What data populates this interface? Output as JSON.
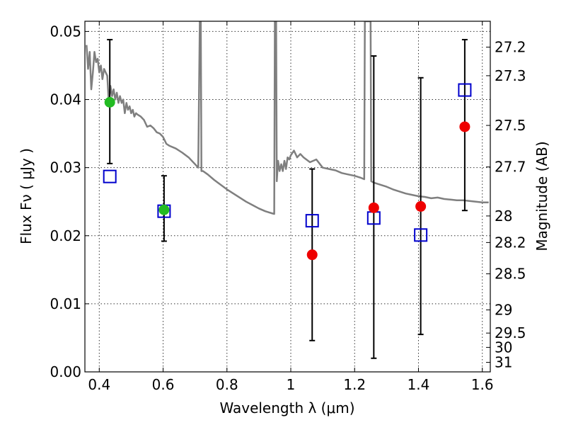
{
  "chart_data": {
    "type": "scatter",
    "xlabel": "Wavelength  λ (μm)",
    "ylabel": "Flux  Fν  ( μJy )",
    "ylabel_right": "Magnitude (AB)",
    "xlim": [
      0.355,
      1.625
    ],
    "ylim": [
      0.0,
      0.0515
    ],
    "grid": true,
    "x_ticks": [
      0.4,
      0.6,
      0.8,
      1.0,
      1.2,
      1.4,
      1.6
    ],
    "x_tick_labels": [
      "0.4",
      "0.6",
      "0.8",
      "1",
      "1.2",
      "1.4",
      "1.6"
    ],
    "y_ticks": [
      0.0,
      0.01,
      0.02,
      0.03,
      0.04,
      0.05
    ],
    "y_tick_labels": [
      "0.00",
      "0.01",
      "0.02",
      "0.03",
      "0.04",
      "0.05"
    ],
    "right_ticks": [
      {
        "label": "27.2",
        "flux": 0.0477
      },
      {
        "label": "27.3",
        "flux": 0.0435
      },
      {
        "label": "27.5",
        "flux": 0.0362
      },
      {
        "label": "27.7",
        "flux": 0.0301
      },
      {
        "label": "28",
        "flux": 0.0229
      },
      {
        "label": "28.2",
        "flux": 0.019
      },
      {
        "label": "28.5",
        "flux": 0.0144
      },
      {
        "label": "29",
        "flux": 0.0091
      },
      {
        "label": "29.5",
        "flux": 0.0057
      },
      {
        "label": "30",
        "flux": 0.0036
      },
      {
        "label": "31",
        "flux": 0.0014
      }
    ],
    "series": [
      {
        "kind": "spectrum",
        "color": "#7f7f7f",
        "x": [
          0.36,
          0.365,
          0.37,
          0.375,
          0.38,
          0.385,
          0.39,
          0.395,
          0.4,
          0.405,
          0.41,
          0.415,
          0.42,
          0.425,
          0.43,
          0.435,
          0.44,
          0.445,
          0.45,
          0.455,
          0.46,
          0.465,
          0.47,
          0.475,
          0.48,
          0.485,
          0.49,
          0.495,
          0.5,
          0.505,
          0.51,
          0.515,
          0.52,
          0.53,
          0.54,
          0.55,
          0.56,
          0.57,
          0.58,
          0.59,
          0.6,
          0.61,
          0.62,
          0.64,
          0.66,
          0.68,
          0.7,
          0.71,
          0.715,
          0.718,
          0.72,
          0.725,
          0.74,
          0.76,
          0.78,
          0.8,
          0.82,
          0.84,
          0.86,
          0.88,
          0.9,
          0.92,
          0.94,
          0.948,
          0.95,
          0.952,
          0.954,
          0.956,
          0.96,
          0.965,
          0.97,
          0.975,
          0.98,
          0.985,
          0.99,
          0.995,
          1.0,
          1.01,
          1.02,
          1.03,
          1.04,
          1.06,
          1.08,
          1.1,
          1.12,
          1.14,
          1.16,
          1.18,
          1.2,
          1.22,
          1.23,
          1.232,
          1.25,
          1.252,
          1.26,
          1.28,
          1.3,
          1.32,
          1.34,
          1.36,
          1.38,
          1.4,
          1.42,
          1.44,
          1.46,
          1.48,
          1.5,
          1.52,
          1.54,
          1.56,
          1.58,
          1.6,
          1.62
        ],
        "y": [
          0.048,
          0.0445,
          0.047,
          0.0415,
          0.044,
          0.047,
          0.0455,
          0.046,
          0.044,
          0.045,
          0.043,
          0.0445,
          0.044,
          0.0435,
          0.0395,
          0.042,
          0.0405,
          0.0415,
          0.04,
          0.041,
          0.0395,
          0.0405,
          0.0395,
          0.04,
          0.038,
          0.0395,
          0.0385,
          0.039,
          0.038,
          0.0385,
          0.0375,
          0.038,
          0.0378,
          0.0375,
          0.037,
          0.036,
          0.0362,
          0.0358,
          0.0352,
          0.035,
          0.0345,
          0.0335,
          0.0332,
          0.0328,
          0.0322,
          0.0315,
          0.0305,
          0.03,
          0.0515,
          0.0515,
          0.0295,
          0.0295,
          0.029,
          0.0282,
          0.0275,
          0.0268,
          0.0262,
          0.0256,
          0.025,
          0.0245,
          0.024,
          0.0236,
          0.0233,
          0.0232,
          0.0515,
          0.0515,
          0.0515,
          0.028,
          0.031,
          0.0295,
          0.0305,
          0.0295,
          0.031,
          0.0298,
          0.0315,
          0.0312,
          0.0318,
          0.0325,
          0.0315,
          0.032,
          0.0315,
          0.0308,
          0.0312,
          0.03,
          0.0298,
          0.0296,
          0.0292,
          0.029,
          0.0288,
          0.0285,
          0.0283,
          0.0515,
          0.0515,
          0.028,
          0.0278,
          0.0275,
          0.0272,
          0.0268,
          0.0265,
          0.0262,
          0.026,
          0.0258,
          0.0257,
          0.0255,
          0.0256,
          0.0254,
          0.0253,
          0.0252,
          0.0252,
          0.0251,
          0.025,
          0.0249,
          0.0249
        ]
      },
      {
        "kind": "errorbar",
        "x": [
          0.433,
          0.603,
          1.067,
          1.26,
          1.407,
          1.545
        ],
        "low": [
          0.0306,
          0.0192,
          0.0046,
          0.002,
          0.0055,
          0.0237
        ],
        "high": [
          0.0488,
          0.0288,
          0.0298,
          0.0464,
          0.0432,
          0.0488
        ]
      },
      {
        "kind": "model",
        "marker": "open-square",
        "color": "#0000cc",
        "x": [
          0.433,
          0.603,
          1.067,
          1.26,
          1.407,
          1.545
        ],
        "y": [
          0.0287,
          0.0236,
          0.0222,
          0.0226,
          0.0201,
          0.0414
        ]
      },
      {
        "kind": "observed",
        "marker": "circle",
        "x": [
          0.433,
          0.603,
          1.067,
          1.26,
          1.407,
          1.545
        ],
        "y": [
          0.0396,
          0.0238,
          0.0172,
          0.0241,
          0.0243,
          0.036
        ],
        "colors": [
          "#22bb22",
          "#22bb22",
          "#ee0000",
          "#ee0000",
          "#ee0000",
          "#ee0000"
        ]
      }
    ]
  }
}
